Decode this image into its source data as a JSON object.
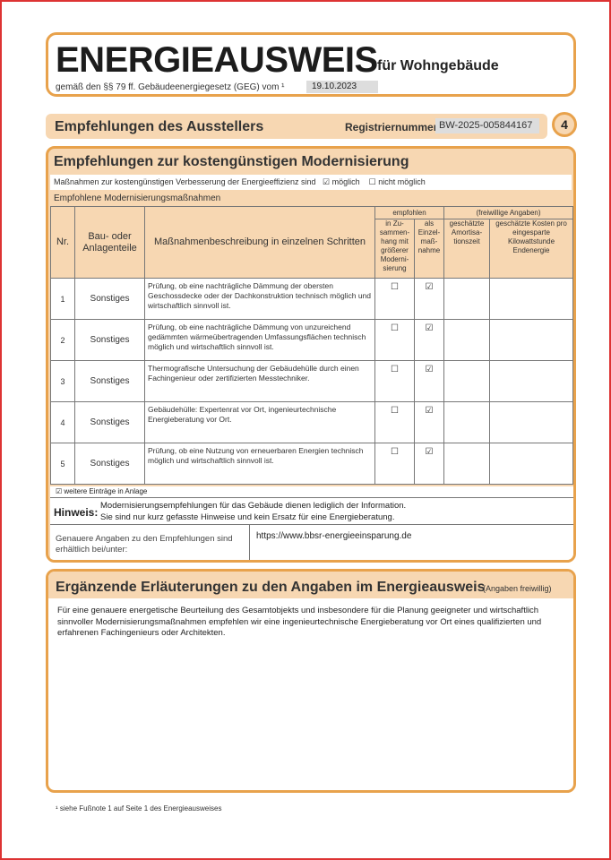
{
  "header": {
    "title": "ENERGIEAUSWEIS",
    "subtitle": "für Wohngebäude",
    "legal": "gemäß den §§ 79 ff. Gebäudeenergiegesetz (GEG) vom ¹",
    "date": "19.10.2023"
  },
  "section": {
    "title": "Empfehlungen des Ausstellers",
    "registration_label": "Registriernummer:",
    "registration_number": "BW-2025-005844167",
    "page_number": "4"
  },
  "modernisation": {
    "title": "Empfehlungen zur kostengünstigen Modernisierung",
    "possible_text": "Maßnahmen zur kostengünstigen Verbesserung der Energieeffizienz sind",
    "possible_label": "möglich",
    "possible_checked": true,
    "not_possible_label": "nicht möglich",
    "not_possible_checked": false,
    "recommended_label": "Empfohlene Modernisierungsmaßnahmen",
    "columns": {
      "nr": "Nr.",
      "part": "Bau- oder Anlagenteile",
      "description": "Maßnahmenbeschreibung in einzelnen Schritten",
      "recommended": "empfohlen",
      "in_context": "in Zu-sammen-hang mit größerer Moderni-sierung",
      "single": "als Einzel-maß-nahme",
      "voluntary": "(freiwillige Angaben)",
      "payback": "geschätzte Amortisa-tionszeit",
      "cost": "geschätzte Kosten pro eingesparte Kilowattstunde Endenergie"
    },
    "rows": [
      {
        "nr": "1",
        "part": "Sonstiges",
        "description": "Prüfung, ob eine nachträgliche Dämmung der obersten Geschossdecke oder der Dachkonstruktion technisch möglich und wirtschaftlich sinnvoll ist.",
        "in_context": "☐",
        "single": "☑"
      },
      {
        "nr": "2",
        "part": "Sonstiges",
        "description": "Prüfung, ob eine nachträgliche Dämmung von unzureichend gedämmten wärmeübertragenden Umfassungsflächen technisch möglich und wirtschaftlich sinnvoll ist.",
        "in_context": "☐",
        "single": "☑"
      },
      {
        "nr": "3",
        "part": "Sonstiges",
        "description": "Thermografische Untersuchung der Gebäudehülle durch einen Fachingenieur oder zertifizierten Messtechniker.",
        "in_context": "☐",
        "single": "☑"
      },
      {
        "nr": "4",
        "part": "Sonstiges",
        "description": "Gebäudehülle: Expertenrat vor Ort, ingenieurtechnische Energieberatung vor Ort.",
        "in_context": "☐",
        "single": "☑"
      },
      {
        "nr": "5",
        "part": "Sonstiges",
        "description": "Prüfung, ob eine Nutzung von erneuerbaren Energien technisch möglich und wirtschaftlich sinnvoll ist.",
        "in_context": "☐",
        "single": "☑"
      }
    ],
    "more_entries": "☑ weitere Einträge in Anlage",
    "note_label": "Hinweis:",
    "note_line1": "Modernisierungsempfehlungen für das Gebäude dienen lediglich der Information.",
    "note_line2": "Sie sind nur kurz gefasste Hinweise und kein Ersatz für eine Energieberatung.",
    "details_label": "Genauere Angaben zu den Empfehlungen sind erhältlich bei/unter:",
    "details_url": "https://www.bbsr-energieeinsparung.de"
  },
  "explanations": {
    "title": "Ergänzende Erläuterungen zu den Angaben im Energieausweis",
    "voluntary": "(Angaben freiwillig)",
    "text": "Für eine genauere energetische Beurteilung des Gesamtobjekts und insbesondere für die Planung geeigneter und wirtschaftlich sinnvoller Modernisierungsmaßnahmen empfehlen wir eine ingenieurtechnische Energieberatung vor Ort eines qualifizierten und erfahrenen Fachingenieurs oder Architekten."
  },
  "footnote": "¹ siehe Fußnote 1 auf Seite 1 des Energieausweises",
  "colors": {
    "accent_border": "#e8a24c",
    "accent_fill": "#f7d7b2",
    "frame": "#dd3333"
  }
}
